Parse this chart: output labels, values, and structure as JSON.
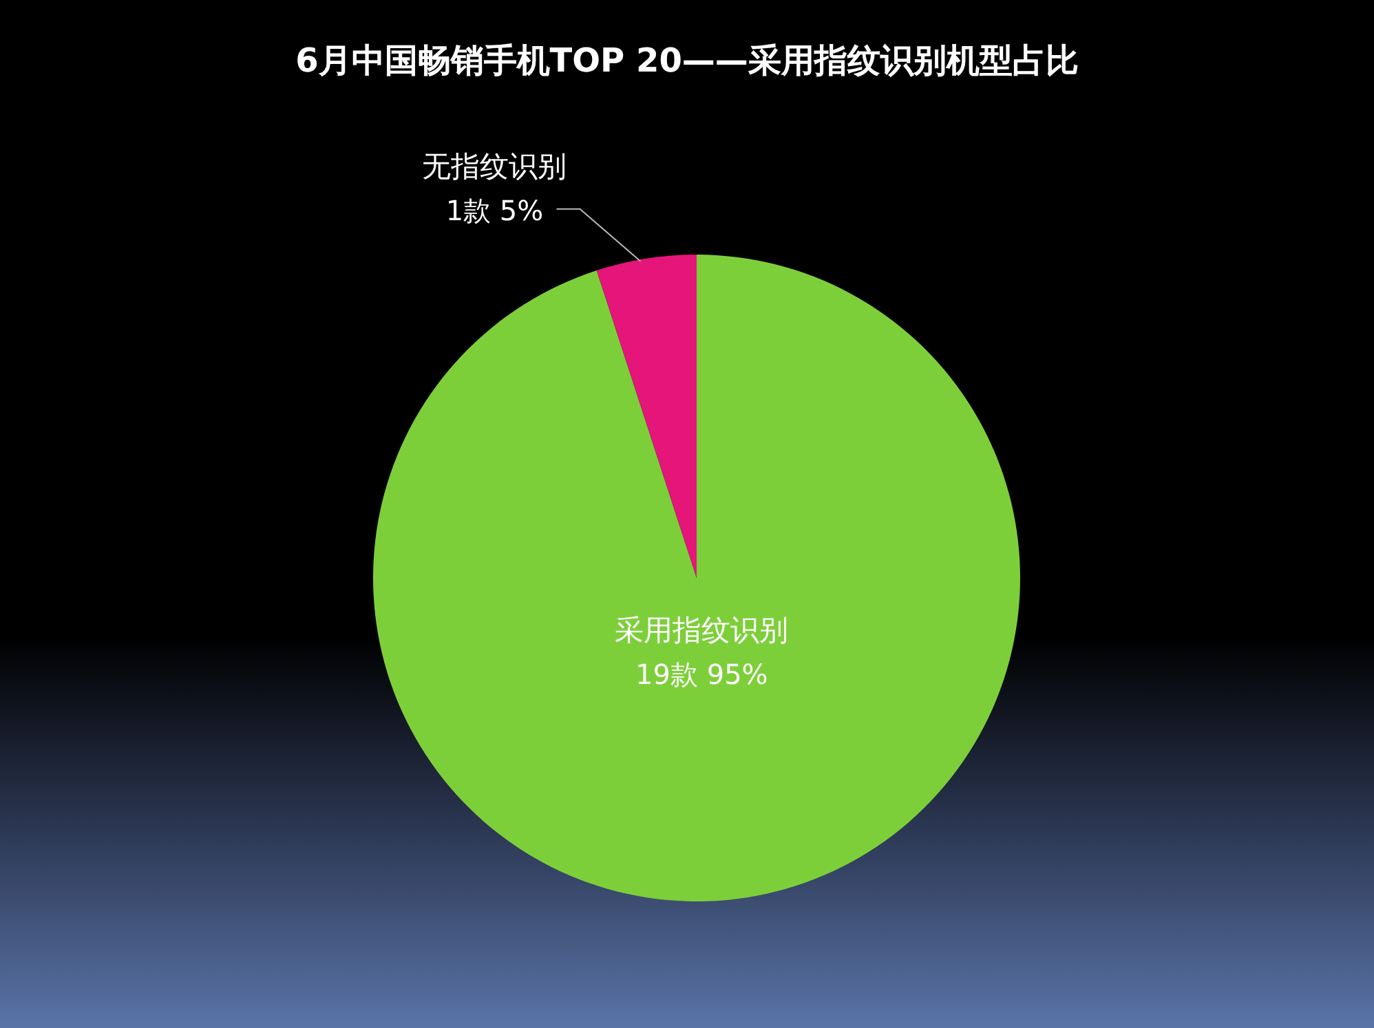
{
  "chart_data": {
    "type": "pie",
    "title": "6月中国畅销手机TOP 20——采用指纹识别机型占比",
    "categories": [
      "采用指纹识别",
      "无指纹识别"
    ],
    "values": [
      19,
      1
    ],
    "value_labels": [
      "19款 95%",
      "1款 5%"
    ],
    "colors": [
      "#7dcf3a",
      "#e5157a"
    ]
  }
}
